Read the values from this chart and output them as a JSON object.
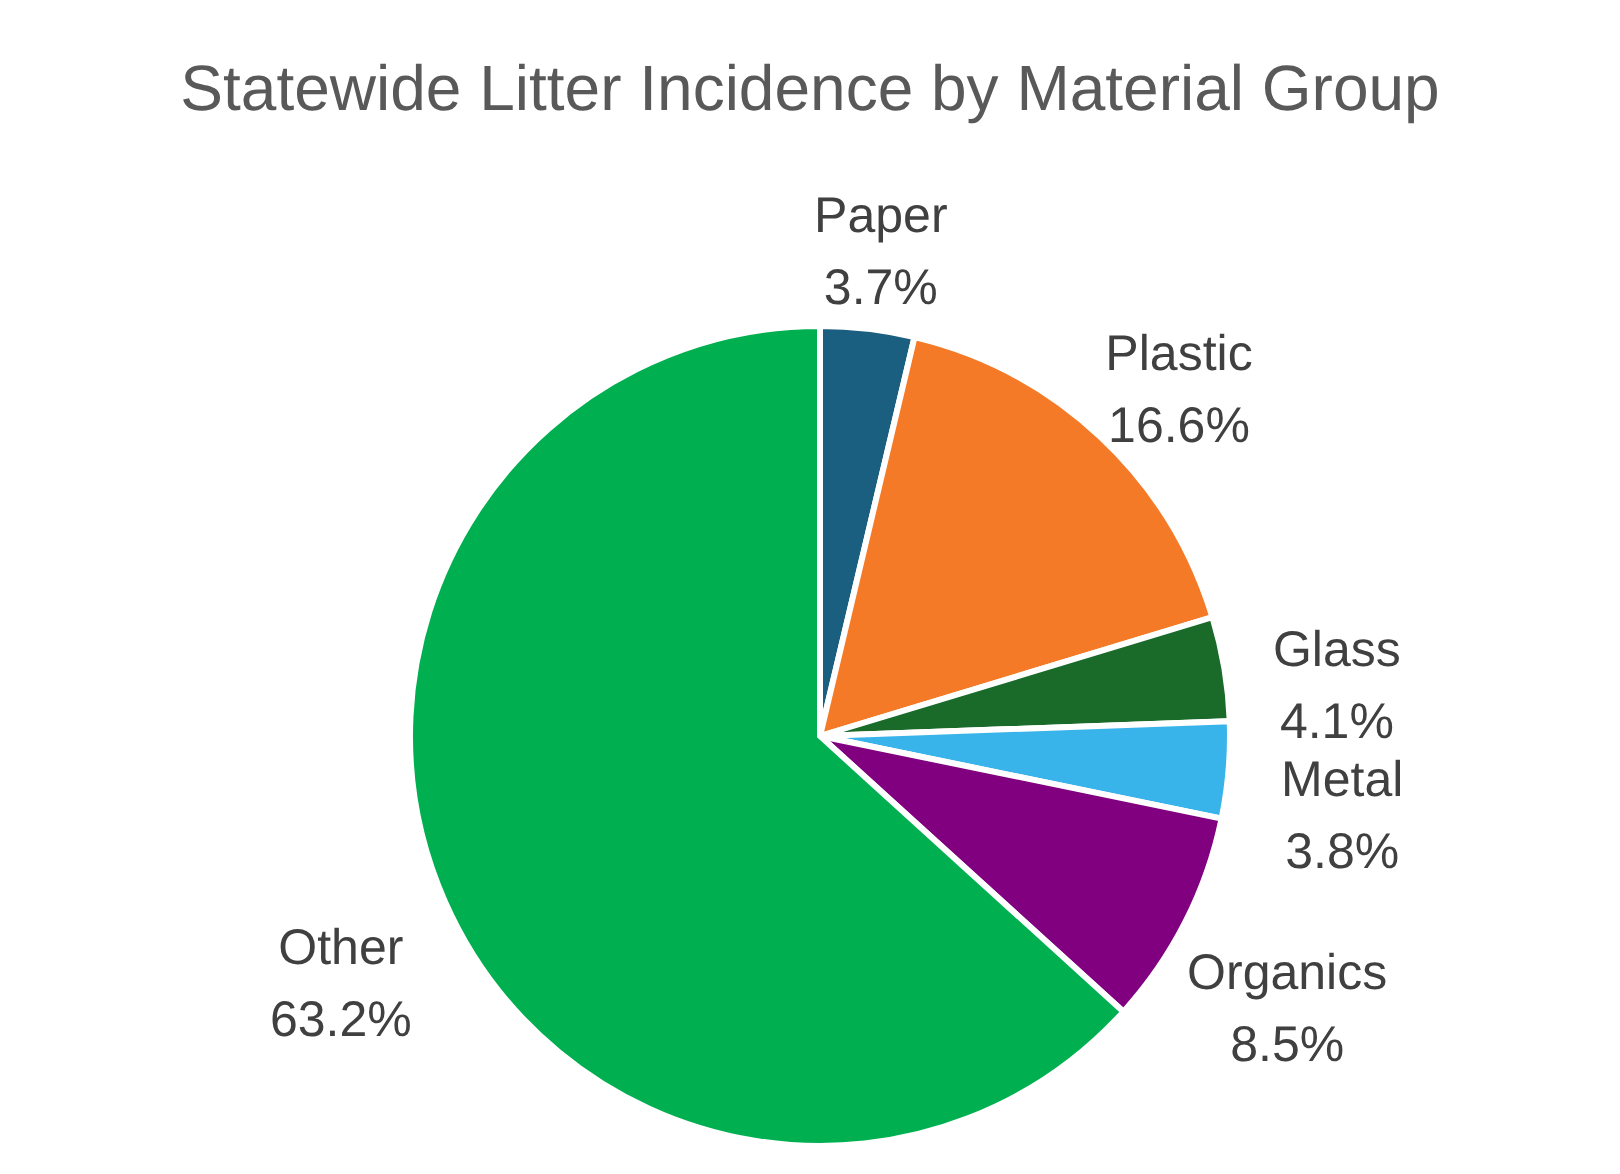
{
  "chart_data": {
    "type": "pie",
    "title": "Statewide Litter Incidence by Material Group",
    "categories": [
      "Paper",
      "Plastic",
      "Glass",
      "Metal",
      "Organics",
      "Other"
    ],
    "values": [
      3.7,
      16.6,
      4.1,
      3.8,
      8.5,
      63.2
    ],
    "colors": [
      "#1a5e80",
      "#f57a28",
      "#1a6b2a",
      "#39b4ea",
      "#800080",
      "#00b050"
    ],
    "value_labels": [
      "3.7%",
      "16.6%",
      "4.1%",
      "3.8%",
      "8.5%",
      "63.2%"
    ],
    "legend": false
  }
}
